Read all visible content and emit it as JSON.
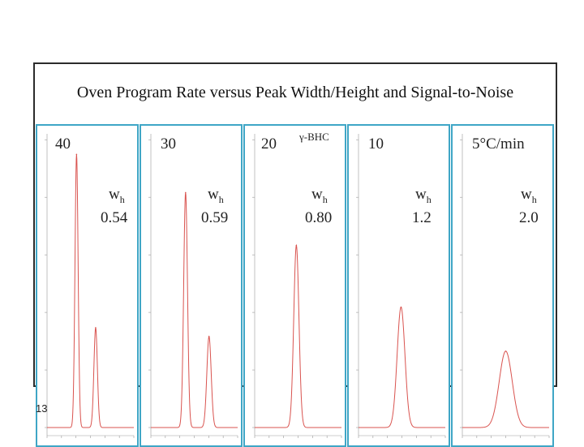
{
  "page_number": "13",
  "colors": {
    "panel_border": "#3fa6c6",
    "trace": "#d9534f",
    "frame": "#2b2b2b"
  },
  "chart_data": {
    "type": "line",
    "title": "Oven Program Rate versus Peak Width/Height and Signal-to-Noise",
    "xlabel": "",
    "ylabel": "",
    "panels": [
      {
        "rate": "40",
        "wh_label": "w",
        "wh_sub": "h",
        "wh_value": "0.54",
        "compound": "",
        "peaks": [
          {
            "center": 0.34,
            "height": 0.93,
            "width": 0.018
          },
          {
            "center": 0.56,
            "height": 0.34,
            "width": 0.02
          }
        ]
      },
      {
        "rate": "30",
        "wh_label": "w",
        "wh_sub": "h",
        "wh_value": "0.59",
        "compound": "",
        "peaks": [
          {
            "center": 0.4,
            "height": 0.8,
            "width": 0.022
          },
          {
            "center": 0.67,
            "height": 0.31,
            "width": 0.025
          }
        ]
      },
      {
        "rate": "20",
        "wh_label": "w",
        "wh_sub": "h",
        "wh_value": "0.80",
        "compound": "γ-BHC",
        "peaks": [
          {
            "center": 0.48,
            "height": 0.62,
            "width": 0.03
          }
        ]
      },
      {
        "rate": "10",
        "wh_label": "w",
        "wh_sub": "h",
        "wh_value": "1.2",
        "compound": "",
        "peaks": [
          {
            "center": 0.49,
            "height": 0.41,
            "width": 0.045
          }
        ]
      },
      {
        "rate": "5°C/min",
        "wh_label": "w",
        "wh_sub": "h",
        "wh_value": "2.0",
        "compound": "",
        "peaks": [
          {
            "center": 0.5,
            "height": 0.26,
            "width": 0.075
          }
        ]
      }
    ]
  }
}
